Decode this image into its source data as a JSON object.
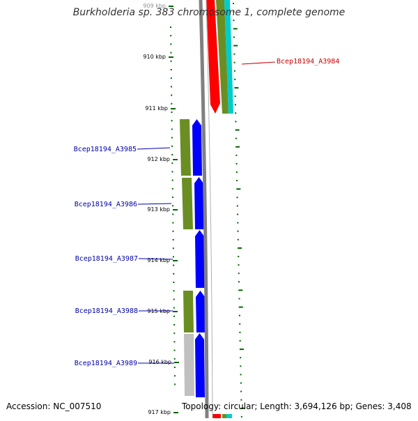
{
  "title": "Burkholderia sp. 383 chromosome 1, complete genome",
  "footer": {
    "accession": "Accession: NC_007510",
    "summary": "Topology: circular; Length: 3,694,126 bp; Genes: 3,408"
  },
  "ticks": [
    "909 kbp",
    "910 kbp",
    "911 kbp",
    "912 kbp",
    "913 kbp",
    "914 kbp",
    "915 kbp",
    "916 kbp",
    "917 kbp"
  ],
  "genes": [
    {
      "id": "Bcep18194_A3984",
      "color": "#cc0000"
    },
    {
      "id": "Bcep18194_A3985",
      "color": "#0000aa"
    },
    {
      "id": "Bcep18194_A3986",
      "color": "#0000aa"
    },
    {
      "id": "Bcep18194_A3987",
      "color": "#0000aa"
    },
    {
      "id": "Bcep18194_A3988",
      "color": "#0000aa"
    },
    {
      "id": "Bcep18194_A3989",
      "color": "#0000aa"
    }
  ],
  "colors": {
    "forward_cds": "#ff0000",
    "reverse_cds": "#0000ff",
    "cog_green": "#6b8e23",
    "cog_cyan": "#00cccc",
    "cog_gray": "#c0c0c0",
    "backbone": "#808080",
    "gc_dots": "#006400"
  }
}
